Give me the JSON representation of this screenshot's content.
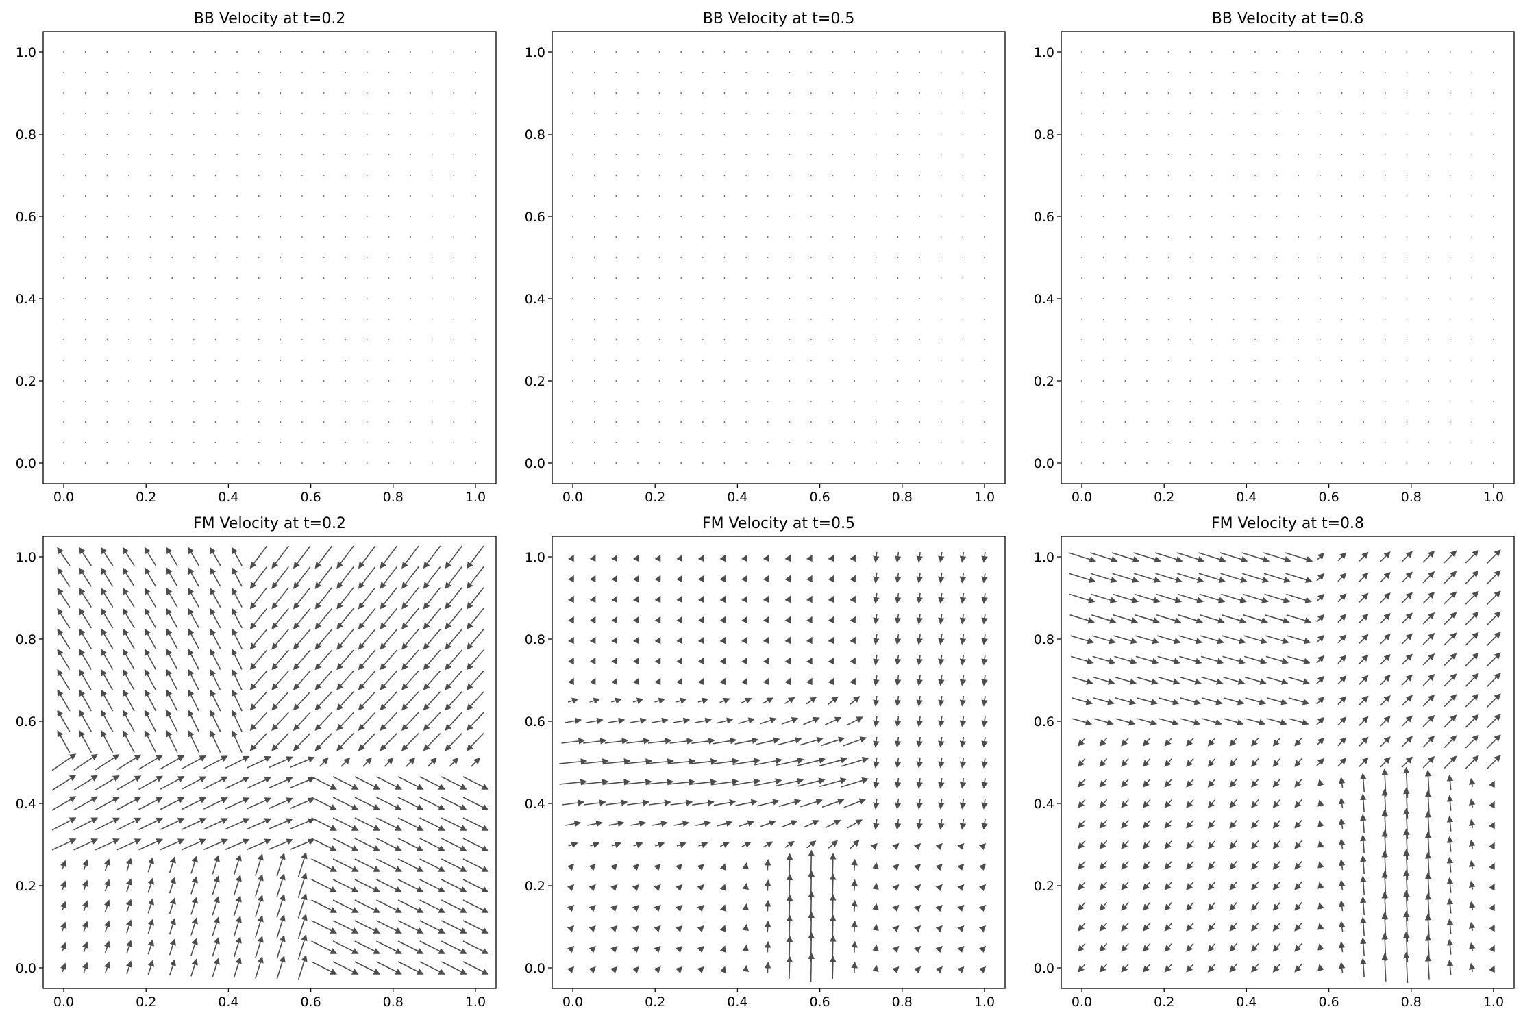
{
  "figure": {
    "background": "#ffffff"
  },
  "chart_data": [
    {
      "type": "quiver",
      "title": "BB Velocity at t=0.2",
      "xlabel": "",
      "ylabel": "",
      "xlim": [
        -0.05,
        1.05
      ],
      "ylim": [
        -0.05,
        1.05
      ],
      "xticks": [
        "0.0",
        "0.2",
        "0.4",
        "0.6",
        "0.8",
        "1.0"
      ],
      "yticks": [
        "0.0",
        "0.2",
        "0.4",
        "0.6",
        "0.8",
        "1.0"
      ],
      "grid_size": [
        20,
        21
      ],
      "field": "zero",
      "arrow_color": "#4d4d4d",
      "note_values": "all vectors approximately zero (dots only)"
    },
    {
      "type": "quiver",
      "title": "BB Velocity at t=0.5",
      "xlabel": "",
      "ylabel": "",
      "xlim": [
        -0.05,
        1.05
      ],
      "ylim": [
        -0.05,
        1.05
      ],
      "xticks": [
        "0.0",
        "0.2",
        "0.4",
        "0.6",
        "0.8",
        "1.0"
      ],
      "yticks": [
        "0.0",
        "0.2",
        "0.4",
        "0.6",
        "0.8",
        "1.0"
      ],
      "grid_size": [
        20,
        21
      ],
      "field": "zero",
      "arrow_color": "#4d4d4d"
    },
    {
      "type": "quiver",
      "title": "BB Velocity at t=0.8",
      "xlabel": "",
      "ylabel": "",
      "xlim": [
        -0.05,
        1.05
      ],
      "ylim": [
        -0.05,
        1.05
      ],
      "xticks": [
        "0.0",
        "0.2",
        "0.4",
        "0.6",
        "0.8",
        "1.0"
      ],
      "yticks": [
        "0.0",
        "0.2",
        "0.4",
        "0.6",
        "0.8",
        "1.0"
      ],
      "grid_size": [
        20,
        21
      ],
      "field": "zero",
      "arrow_color": "#4d4d4d"
    },
    {
      "type": "quiver",
      "title": "FM Velocity at t=0.2",
      "xlabel": "",
      "ylabel": "",
      "xlim": [
        -0.05,
        1.05
      ],
      "ylim": [
        -0.05,
        1.05
      ],
      "xticks": [
        "0.0",
        "0.2",
        "0.4",
        "0.6",
        "0.8",
        "1.0"
      ],
      "yticks": [
        "0.0",
        "0.2",
        "0.4",
        "0.6",
        "0.8",
        "1.0"
      ],
      "grid_size": [
        20,
        21
      ],
      "field": "fm02",
      "arrow_color": "#4d4d4d",
      "regions": [
        {
          "name": "upper-left",
          "direction": "up-left"
        },
        {
          "name": "upper-right",
          "direction": "down-left"
        },
        {
          "name": "middle-left",
          "direction": "up-right"
        },
        {
          "name": "lower-right",
          "direction": "down-right"
        },
        {
          "name": "lower-middle",
          "direction": "up"
        }
      ]
    },
    {
      "type": "quiver",
      "title": "FM Velocity at t=0.5",
      "xlabel": "",
      "ylabel": "",
      "xlim": [
        -0.05,
        1.05
      ],
      "ylim": [
        -0.05,
        1.05
      ],
      "xticks": [
        "0.0",
        "0.2",
        "0.4",
        "0.6",
        "0.8",
        "1.0"
      ],
      "yticks": [
        "0.0",
        "0.2",
        "0.4",
        "0.6",
        "0.8",
        "1.0"
      ],
      "grid_size": [
        20,
        21
      ],
      "field": "fm05",
      "arrow_color": "#4d4d4d",
      "regions": [
        {
          "name": "middle-band",
          "direction": "right"
        },
        {
          "name": "lower-center",
          "direction": "up"
        },
        {
          "name": "right-column",
          "direction": "down"
        }
      ]
    },
    {
      "type": "quiver",
      "title": "FM Velocity at t=0.8",
      "xlabel": "",
      "ylabel": "",
      "xlim": [
        -0.05,
        1.05
      ],
      "ylim": [
        -0.05,
        1.05
      ],
      "xticks": [
        "0.0",
        "0.2",
        "0.4",
        "0.6",
        "0.8",
        "1.0"
      ],
      "yticks": [
        "0.0",
        "0.2",
        "0.4",
        "0.6",
        "0.8",
        "1.0"
      ],
      "grid_size": [
        20,
        21
      ],
      "field": "fm08",
      "arrow_color": "#4d4d4d",
      "regions": [
        {
          "name": "upper-left",
          "direction": "down-right"
        },
        {
          "name": "upper-right",
          "direction": "up-right"
        },
        {
          "name": "lower-right",
          "direction": "up"
        },
        {
          "name": "lower-left",
          "direction": "down-left"
        }
      ]
    }
  ]
}
